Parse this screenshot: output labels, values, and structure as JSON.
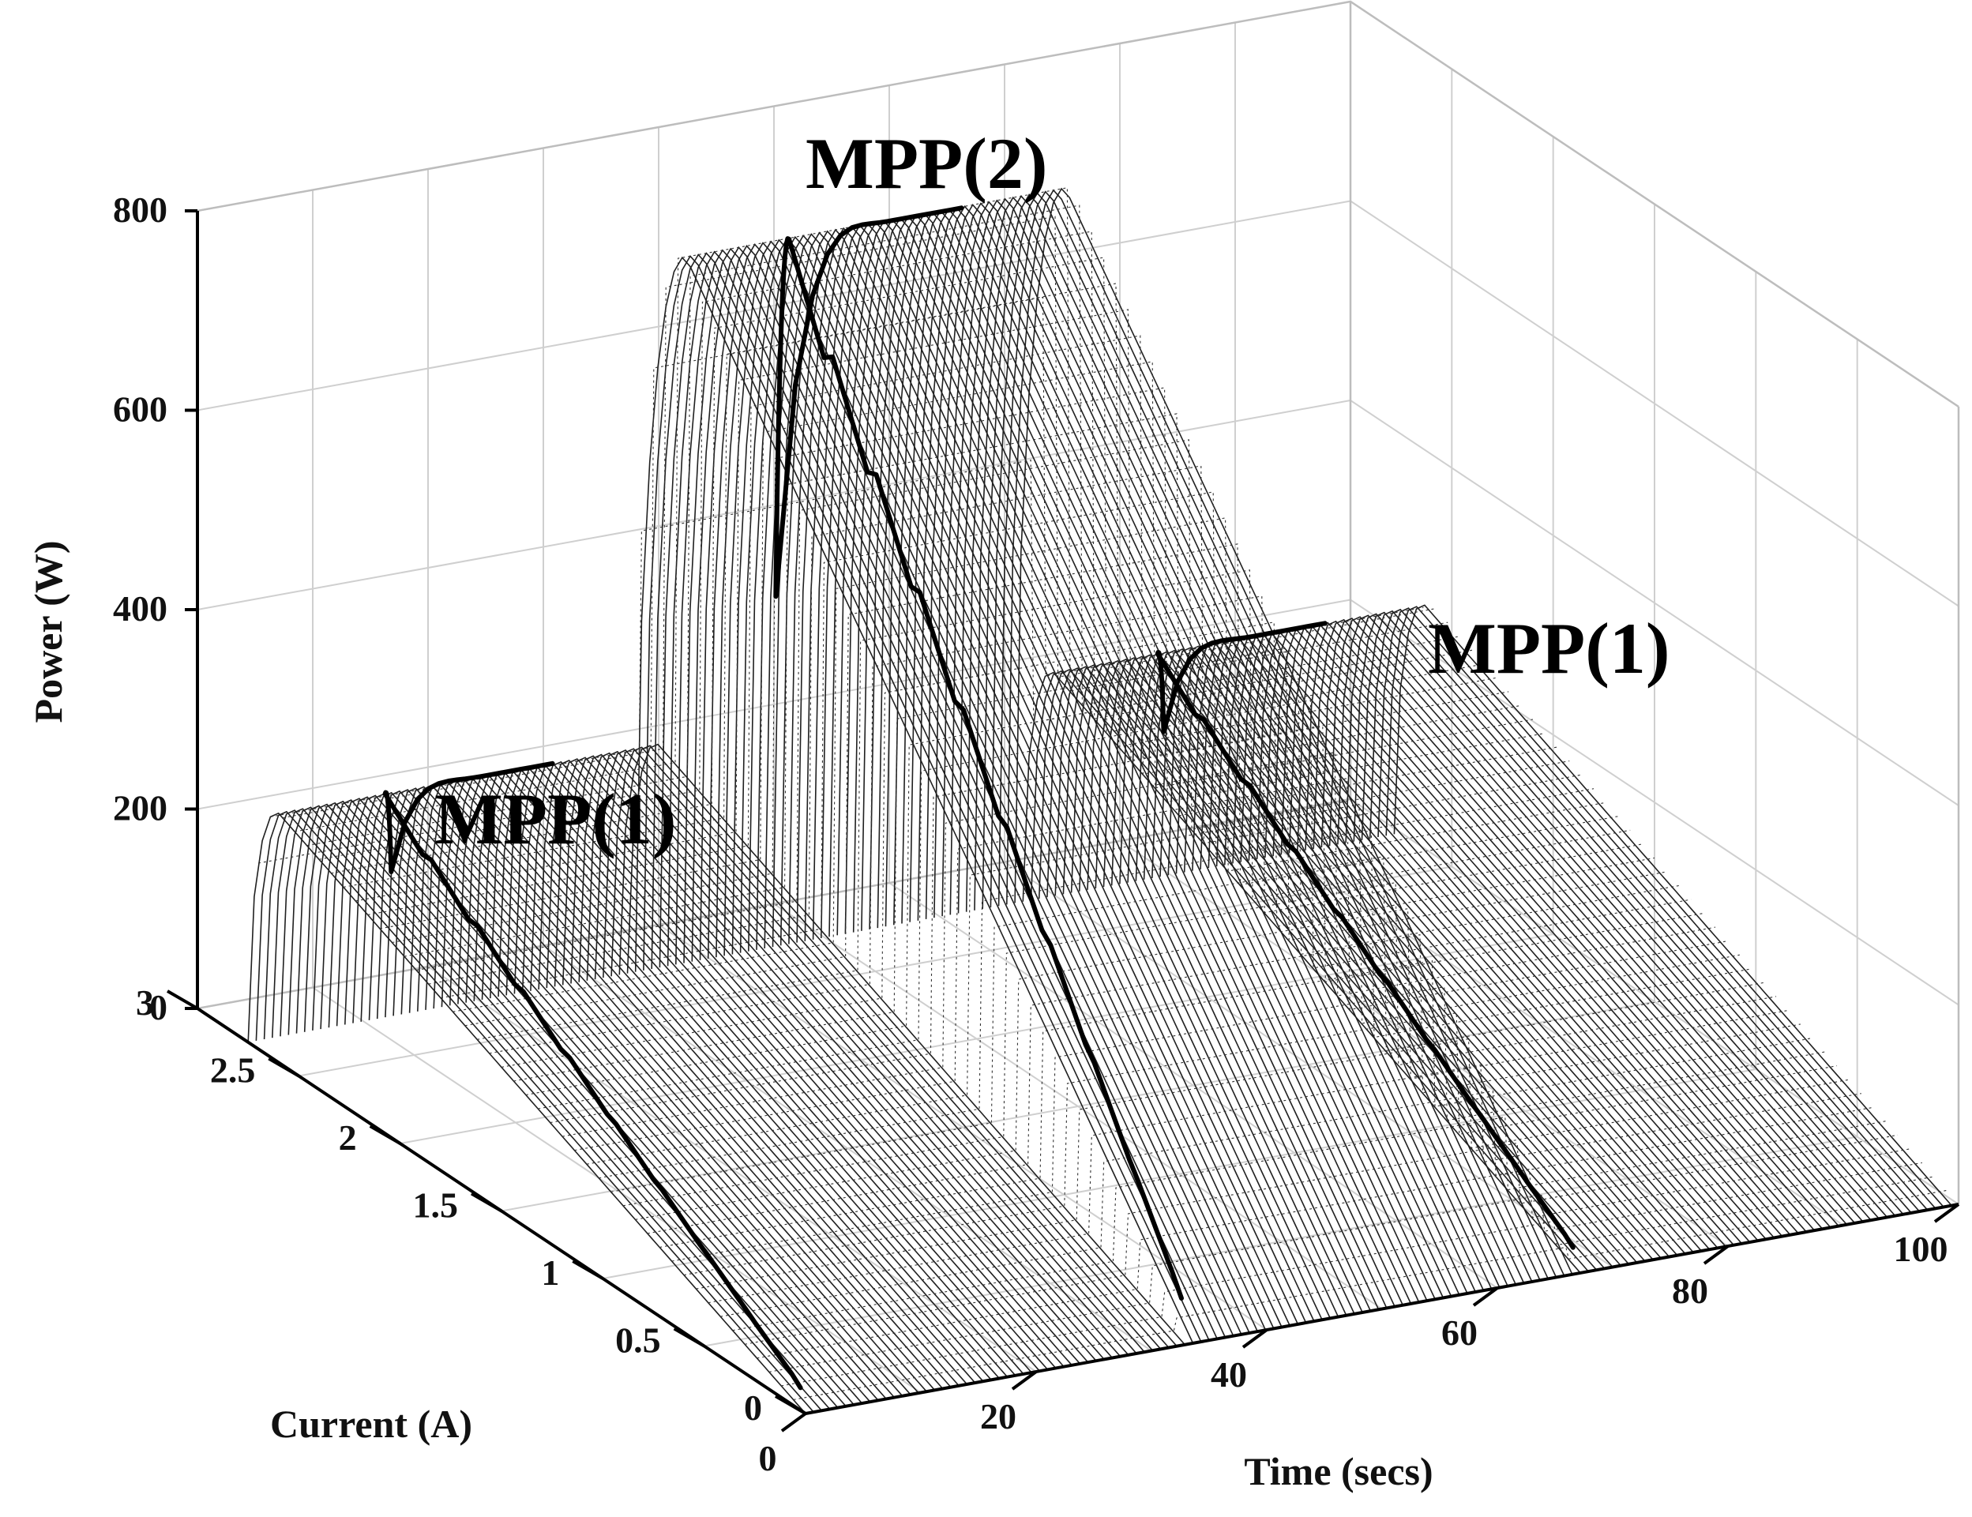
{
  "chart_data": {
    "type": "surface",
    "title": "",
    "xlabel": "Time (secs)",
    "ylabel": "Current (A)",
    "zlabel": "Power (W)",
    "xlim": [
      0,
      100
    ],
    "ylim": [
      0,
      3
    ],
    "zlim": [
      0,
      800
    ],
    "xticks": [
      "0",
      "20",
      "40",
      "60",
      "80",
      "100"
    ],
    "yticks": [
      "0",
      "0.5",
      "1",
      "1.5",
      "2",
      "2.5",
      "3"
    ],
    "zticks": [
      "0",
      "200",
      "400",
      "600",
      "800"
    ],
    "grid": true,
    "segments": [
      {
        "label": "MPP(1)",
        "t_start": 0,
        "t_end": 33,
        "peak_power": 250,
        "current_at_peak": 2.6
      },
      {
        "label": "MPP(2)",
        "t_start": 33,
        "t_end": 67,
        "peak_power": 750,
        "current_at_peak": 2.5
      },
      {
        "label": "MPP(1)",
        "t_start": 67,
        "t_end": 100,
        "peak_power": 250,
        "current_at_peak": 2.6
      }
    ],
    "annotations": [
      "MPP(1)",
      "MPP(2)",
      "MPP(1)"
    ]
  }
}
